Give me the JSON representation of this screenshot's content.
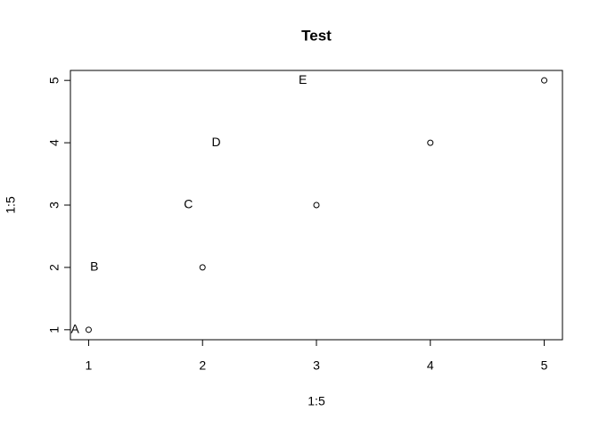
{
  "chart_data": {
    "type": "scatter",
    "title": "Test",
    "x_label": "1:5",
    "y_label": "1:5",
    "x": [
      1,
      2,
      3,
      4,
      5
    ],
    "values": [
      1,
      2,
      3,
      4,
      5
    ],
    "color": "#000000",
    "xlim": [
      0.84,
      5.16
    ],
    "ylim": [
      0.84,
      5.16
    ],
    "xticks": [
      1,
      2,
      3,
      4,
      5
    ],
    "yticks": [
      1,
      2,
      3,
      4,
      5
    ],
    "grid": false,
    "annotations": [
      {
        "text": "A",
        "x": 0.88,
        "y": 1
      },
      {
        "text": "B",
        "x": 1.05,
        "y": 2
      },
      {
        "text": "C",
        "x": 1.875,
        "y": 3
      },
      {
        "text": "D",
        "x": 2.12,
        "y": 4
      },
      {
        "text": "E",
        "x": 2.88,
        "y": 5
      }
    ]
  }
}
